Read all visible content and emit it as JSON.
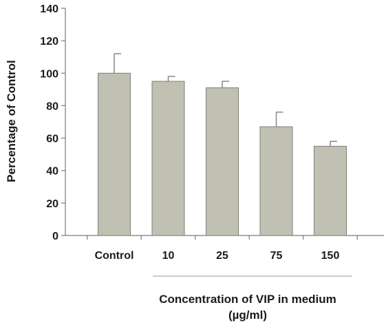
{
  "chart_data": {
    "type": "bar",
    "title": "",
    "xlabel": "Concentration of VIP in medium",
    "xlabel_unit": "(µg/ml)",
    "ylabel": "Percentage of Control",
    "ylim": [
      0,
      140
    ],
    "yticks": [
      "0",
      "20",
      "40",
      "60",
      "80",
      "100",
      "120",
      "140"
    ],
    "categories": [
      "Control",
      "10",
      "25",
      "75",
      "150"
    ],
    "values": [
      100,
      95,
      91,
      67,
      55
    ],
    "errors": [
      12,
      3,
      4,
      9,
      3
    ],
    "grid": false,
    "legend": "none",
    "colors": {
      "bar_fill": "#c0c1b3",
      "bar_stroke": "#7f7f78",
      "axis": "#7a7a7a",
      "text": "#1a1a1a"
    }
  }
}
